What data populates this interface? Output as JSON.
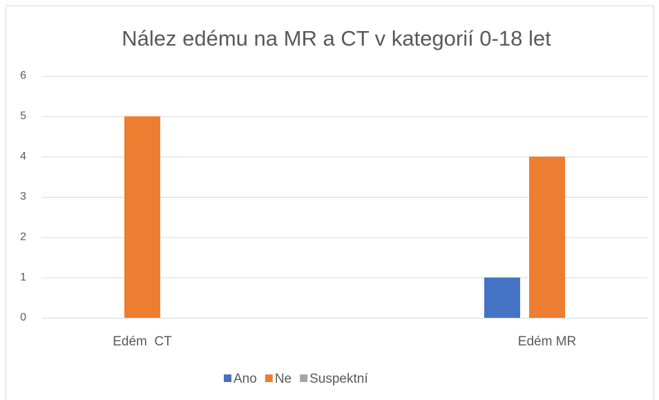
{
  "chart_data": {
    "type": "bar",
    "title": "Nález edému na MR a CT v kategorií 0-18 let",
    "categories": [
      "Edém  CT",
      "Edém MR"
    ],
    "series": [
      {
        "name": "Ano",
        "color": "#4472c4",
        "values": [
          0,
          1
        ]
      },
      {
        "name": "Ne",
        "color": "#ed7d31",
        "values": [
          5,
          4
        ]
      },
      {
        "name": "Suspektní",
        "color": "#a5a5a5",
        "values": [
          0,
          0
        ]
      }
    ],
    "ylim": [
      0,
      6
    ],
    "yticks": [
      0,
      1,
      2,
      3,
      4,
      5,
      6
    ],
    "grid": true,
    "legend": "bottom"
  }
}
